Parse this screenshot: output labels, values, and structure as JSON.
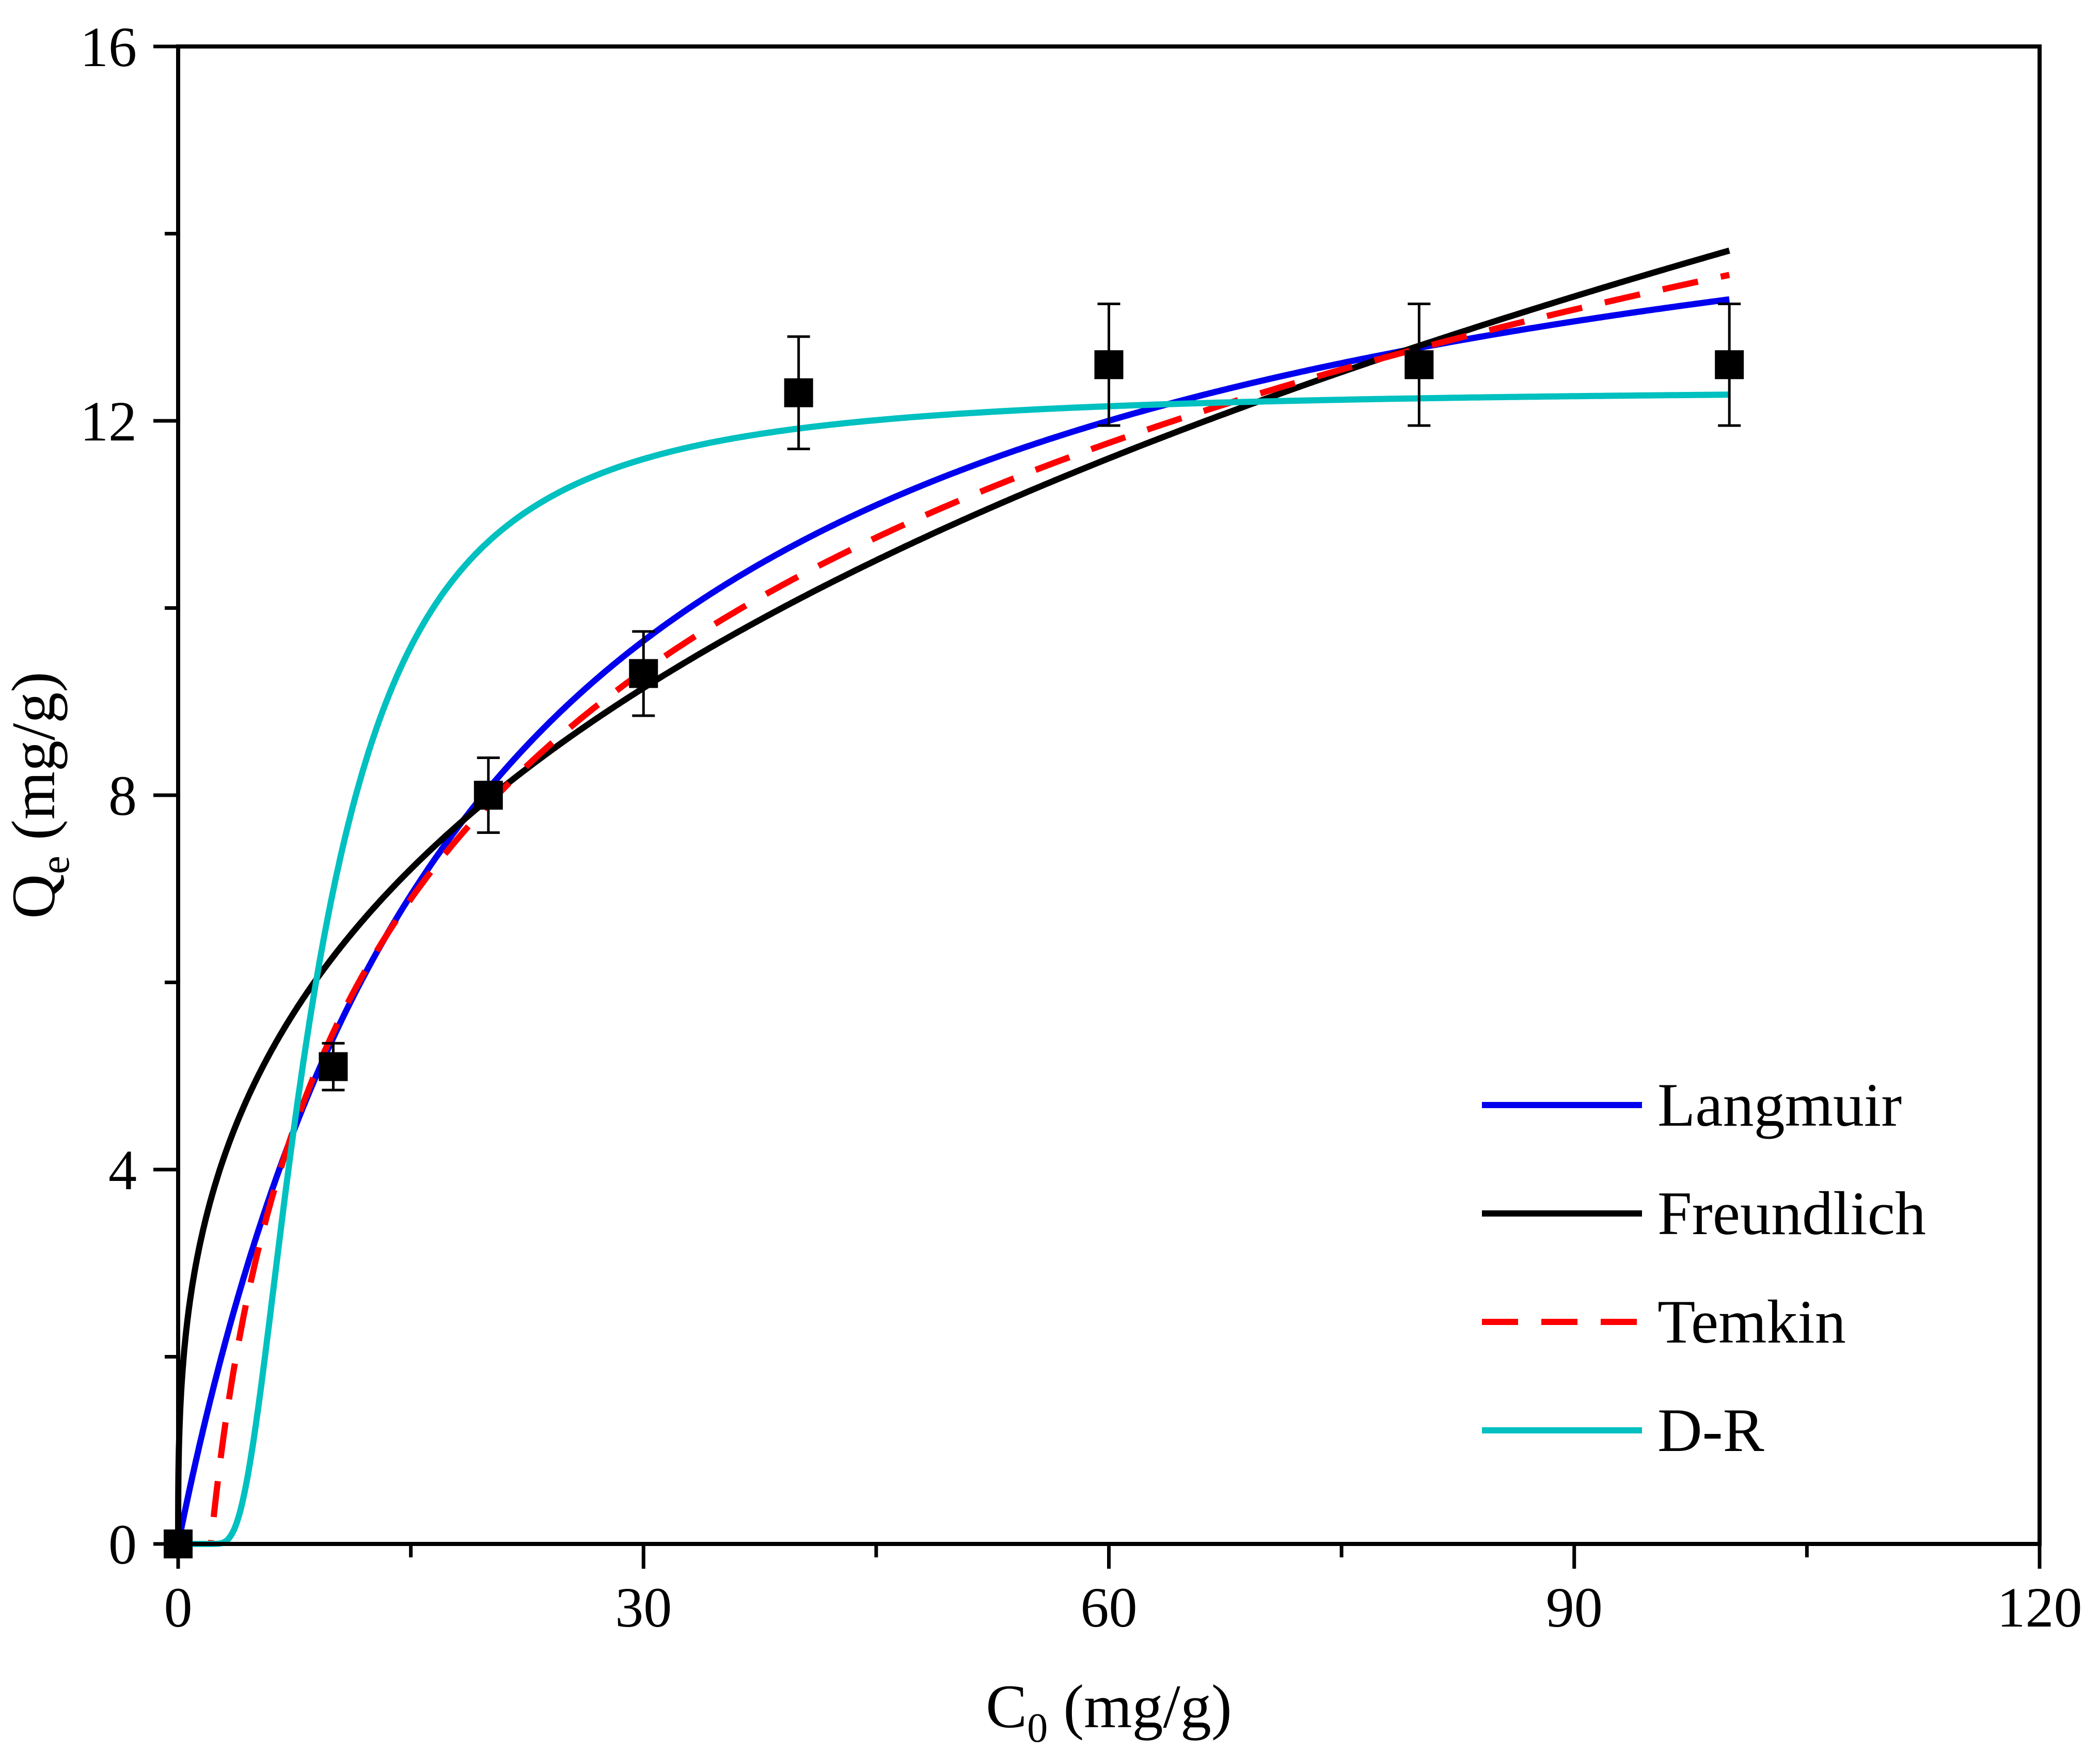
{
  "chart_data": {
    "type": "scatter",
    "title": "",
    "xlabel": {
      "main": "C",
      "sub": "0",
      "unit": " (mg/g)"
    },
    "ylabel": {
      "main": "Q",
      "sub": "e",
      "unit": " (mg/g)"
    },
    "xlim": [
      0,
      120
    ],
    "ylim": [
      0,
      16
    ],
    "xticks": [
      0,
      30,
      60,
      90,
      120
    ],
    "xtick_labels": [
      "0",
      "30",
      "60",
      "90",
      "120"
    ],
    "xminor": [
      15,
      45,
      75,
      105
    ],
    "yticks": [
      0,
      4,
      8,
      12,
      16
    ],
    "ytick_labels": [
      "0",
      "4",
      "8",
      "12",
      "16"
    ],
    "yminor": [
      2,
      6,
      10,
      14
    ],
    "grid": false,
    "legend_position": "bottom-right",
    "points": {
      "x": [
        0,
        10,
        20,
        30,
        40,
        60,
        80,
        100
      ],
      "y": [
        0,
        5.1,
        8.0,
        9.3,
        12.3,
        12.6,
        12.6,
        12.6
      ],
      "err": [
        0,
        0.25,
        0.4,
        0.45,
        0.6,
        0.65,
        0.65,
        0.65
      ],
      "color": "#000000"
    },
    "series": [
      {
        "name": "Langmuir",
        "color": "#0000ee",
        "dashed": false,
        "model": "langmuir",
        "params": {
          "qm": 15.87,
          "kl": 0.0517
        }
      },
      {
        "name": "Freundlich",
        "color": "#000000",
        "dashed": false,
        "model": "freundlich",
        "params": {
          "kf": 2.85,
          "n": 2.917
        }
      },
      {
        "name": "Temkin",
        "color": "#ff0000",
        "dashed": true,
        "model": "temkin",
        "params": {
          "b": 3.515,
          "a": 0.4735
        }
      },
      {
        "name": "D-R",
        "color": "#00c0c0",
        "dashed": false,
        "model": "dr",
        "params": {
          "qm": 12.35,
          "k": 57
        }
      }
    ]
  }
}
